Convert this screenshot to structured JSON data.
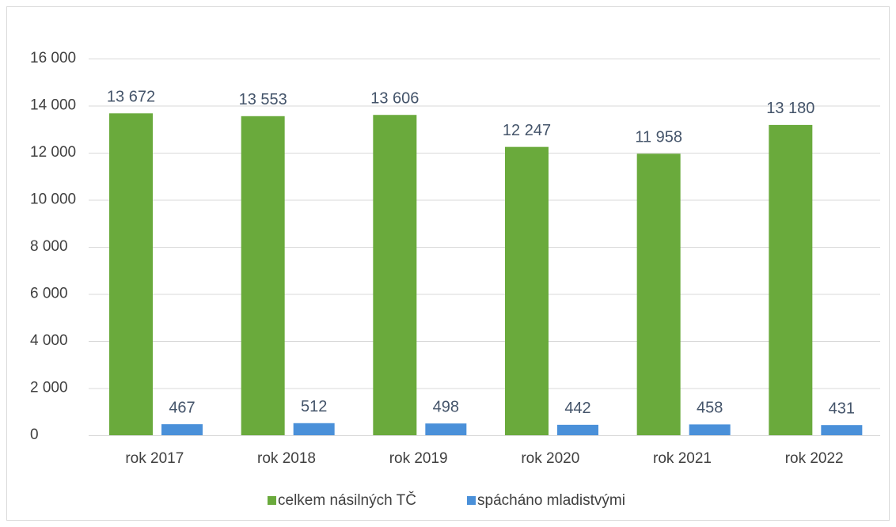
{
  "chart_data": {
    "type": "bar",
    "categories": [
      "rok 2017",
      "rok 2018",
      "rok 2019",
      "rok 2020",
      "rok 2021",
      "rok 2022"
    ],
    "series": [
      {
        "name": "celkem násilných TČ",
        "color": "#6aaa3c",
        "values": [
          13672,
          13553,
          13606,
          12247,
          11958,
          13180
        ],
        "value_labels": [
          "13 672",
          "13 553",
          "13 606",
          "12 247",
          "11 958",
          "13 180"
        ]
      },
      {
        "name": "spácháno mladistvými",
        "color": "#4a90d9",
        "values": [
          467,
          512,
          498,
          442,
          458,
          431
        ],
        "value_labels": [
          "467",
          "512",
          "498",
          "442",
          "458",
          "431"
        ]
      }
    ],
    "ylim": [
      0,
      16000
    ],
    "yticks": [
      0,
      {
        "value": 2000,
        "label": "2 000"
      },
      {
        "value": 4000,
        "label": "4 000"
      },
      {
        "value": 6000,
        "label": "6 000"
      },
      {
        "value": 8000,
        "label": "8 000"
      },
      {
        "value": 10000,
        "label": "10 000"
      },
      {
        "value": 12000,
        "label": "12 000"
      },
      {
        "value": 14000,
        "label": "14 000"
      },
      {
        "value": 16000,
        "label": "16 000"
      }
    ],
    "grid": true,
    "legend": "bottom"
  }
}
